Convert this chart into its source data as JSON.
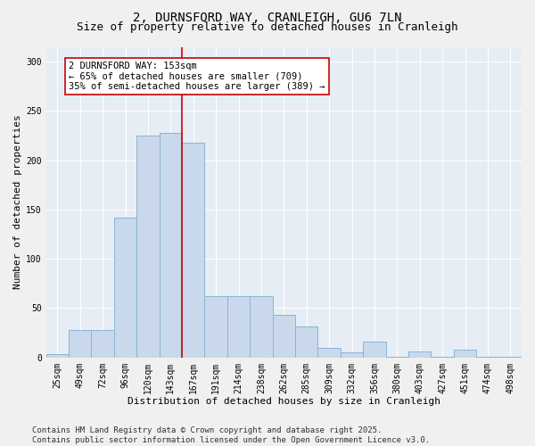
{
  "title1": "2, DURNSFORD WAY, CRANLEIGH, GU6 7LN",
  "title2": "Size of property relative to detached houses in Cranleigh",
  "xlabel": "Distribution of detached houses by size in Cranleigh",
  "ylabel": "Number of detached properties",
  "bins": [
    "25sqm",
    "49sqm",
    "72sqm",
    "96sqm",
    "120sqm",
    "143sqm",
    "167sqm",
    "191sqm",
    "214sqm",
    "238sqm",
    "262sqm",
    "285sqm",
    "309sqm",
    "332sqm",
    "356sqm",
    "380sqm",
    "403sqm",
    "427sqm",
    "451sqm",
    "474sqm",
    "498sqm"
  ],
  "values": [
    3,
    28,
    28,
    142,
    225,
    228,
    218,
    62,
    62,
    62,
    43,
    31,
    10,
    5,
    16,
    1,
    6,
    1,
    8,
    1,
    1
  ],
  "bar_color": "#c9d9eb",
  "bar_edge_color": "#8ab4d4",
  "bg_color": "#e6edf5",
  "fig_color": "#f0f0f0",
  "vline_x": 5.5,
  "vline_color": "#cc0000",
  "annotation_text": "2 DURNSFORD WAY: 153sqm\n← 65% of detached houses are smaller (709)\n35% of semi-detached houses are larger (389) →",
  "annotation_box_color": "#ffffff",
  "annotation_box_edge": "#cc0000",
  "yticks": [
    0,
    50,
    100,
    150,
    200,
    250,
    300
  ],
  "footnote": "Contains HM Land Registry data © Crown copyright and database right 2025.\nContains public sector information licensed under the Open Government Licence v3.0.",
  "title1_fontsize": 10,
  "title2_fontsize": 9,
  "xlabel_fontsize": 8,
  "ylabel_fontsize": 8,
  "tick_fontsize": 7,
  "annotation_fontsize": 7.5,
  "footnote_fontsize": 6.5
}
